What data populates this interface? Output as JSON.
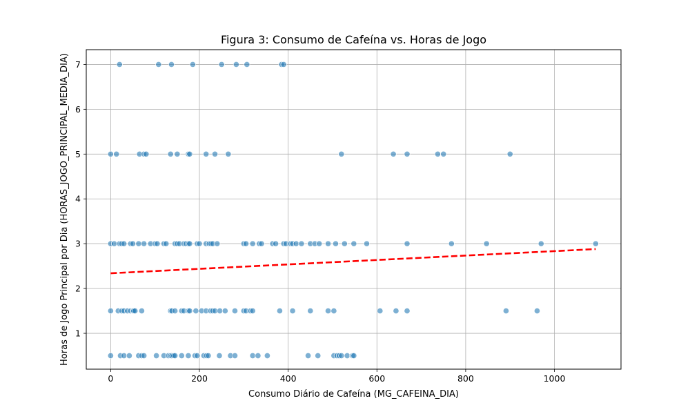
{
  "chart_data": {
    "type": "scatter",
    "title": "Figura 3: Consumo de Cafeína vs. Horas de Jogo",
    "xlabel": "Consumo Diário de Cafeína (MG_CAFEINA_DIA)",
    "ylabel": "Horas de Jogo Principal por Dia (HORAS_JOGO_PRINCIPAL_MEDIA_DIA)",
    "xlim": [
      -55,
      1150
    ],
    "ylim": [
      0.2,
      7.33
    ],
    "xticks": [
      0,
      200,
      400,
      600,
      800,
      1000
    ],
    "yticks": [
      1,
      2,
      3,
      4,
      5,
      6,
      7
    ],
    "grid": true,
    "colors": {
      "points": "#1f77b4",
      "trend": "#ff0000",
      "grid": "#b0b0b0"
    },
    "series": [
      {
        "points": [
          [
            20,
            7
          ],
          [
            108,
            7
          ],
          [
            137,
            7
          ],
          [
            185,
            7
          ],
          [
            250,
            7
          ],
          [
            283,
            7
          ],
          [
            307,
            7
          ],
          [
            385,
            7
          ],
          [
            390,
            7
          ],
          [
            0,
            5
          ],
          [
            13,
            5
          ],
          [
            65,
            5
          ],
          [
            75,
            5
          ],
          [
            80,
            5
          ],
          [
            135,
            5
          ],
          [
            150,
            5
          ],
          [
            175,
            5
          ],
          [
            178,
            5
          ],
          [
            215,
            5
          ],
          [
            235,
            5
          ],
          [
            265,
            5
          ],
          [
            520,
            5
          ],
          [
            637,
            5
          ],
          [
            668,
            5
          ],
          [
            737,
            5
          ],
          [
            750,
            5
          ],
          [
            900,
            5
          ],
          [
            0,
            3
          ],
          [
            8,
            3
          ],
          [
            20,
            3
          ],
          [
            25,
            3
          ],
          [
            30,
            3
          ],
          [
            45,
            3
          ],
          [
            50,
            3
          ],
          [
            63,
            3
          ],
          [
            75,
            3
          ],
          [
            90,
            3
          ],
          [
            100,
            3
          ],
          [
            105,
            3
          ],
          [
            120,
            3
          ],
          [
            125,
            3
          ],
          [
            145,
            3
          ],
          [
            150,
            3
          ],
          [
            155,
            3
          ],
          [
            165,
            3
          ],
          [
            170,
            3
          ],
          [
            175,
            3
          ],
          [
            178,
            3
          ],
          [
            195,
            3
          ],
          [
            200,
            3
          ],
          [
            215,
            3
          ],
          [
            222,
            3
          ],
          [
            226,
            3
          ],
          [
            230,
            3
          ],
          [
            240,
            3
          ],
          [
            300,
            3
          ],
          [
            305,
            3
          ],
          [
            320,
            3
          ],
          [
            335,
            3
          ],
          [
            340,
            3
          ],
          [
            365,
            3
          ],
          [
            372,
            3
          ],
          [
            390,
            3
          ],
          [
            395,
            3
          ],
          [
            405,
            3
          ],
          [
            410,
            3
          ],
          [
            418,
            3
          ],
          [
            430,
            3
          ],
          [
            450,
            3
          ],
          [
            460,
            3
          ],
          [
            470,
            3
          ],
          [
            490,
            3
          ],
          [
            507,
            3
          ],
          [
            527,
            3
          ],
          [
            548,
            3
          ],
          [
            577,
            3
          ],
          [
            668,
            3
          ],
          [
            768,
            3
          ],
          [
            847,
            3
          ],
          [
            970,
            3
          ],
          [
            1093,
            3
          ],
          [
            0,
            1.5
          ],
          [
            17,
            1.5
          ],
          [
            25,
            1.5
          ],
          [
            30,
            1.5
          ],
          [
            38,
            1.5
          ],
          [
            45,
            1.5
          ],
          [
            50,
            1.5
          ],
          [
            52,
            1.5
          ],
          [
            55,
            1.5
          ],
          [
            70,
            1.5
          ],
          [
            135,
            1.5
          ],
          [
            138,
            1.5
          ],
          [
            145,
            1.5
          ],
          [
            160,
            1.5
          ],
          [
            165,
            1.5
          ],
          [
            175,
            1.5
          ],
          [
            178,
            1.5
          ],
          [
            192,
            1.5
          ],
          [
            205,
            1.5
          ],
          [
            215,
            1.5
          ],
          [
            225,
            1.5
          ],
          [
            230,
            1.5
          ],
          [
            235,
            1.5
          ],
          [
            246,
            1.5
          ],
          [
            258,
            1.5
          ],
          [
            280,
            1.5
          ],
          [
            300,
            1.5
          ],
          [
            305,
            1.5
          ],
          [
            315,
            1.5
          ],
          [
            320,
            1.5
          ],
          [
            381,
            1.5
          ],
          [
            410,
            1.5
          ],
          [
            450,
            1.5
          ],
          [
            490,
            1.5
          ],
          [
            503,
            1.5
          ],
          [
            607,
            1.5
          ],
          [
            643,
            1.5
          ],
          [
            668,
            1.5
          ],
          [
            891,
            1.5
          ],
          [
            961,
            1.5
          ],
          [
            0,
            0.5
          ],
          [
            22,
            0.5
          ],
          [
            30,
            0.5
          ],
          [
            42,
            0.5
          ],
          [
            63,
            0.5
          ],
          [
            70,
            0.5
          ],
          [
            75,
            0.5
          ],
          [
            103,
            0.5
          ],
          [
            120,
            0.5
          ],
          [
            130,
            0.5
          ],
          [
            135,
            0.5
          ],
          [
            138,
            0.5
          ],
          [
            142,
            0.5
          ],
          [
            145,
            0.5
          ],
          [
            160,
            0.5
          ],
          [
            175,
            0.5
          ],
          [
            190,
            0.5
          ],
          [
            195,
            0.5
          ],
          [
            210,
            0.5
          ],
          [
            216,
            0.5
          ],
          [
            220,
            0.5
          ],
          [
            245,
            0.5
          ],
          [
            270,
            0.5
          ],
          [
            280,
            0.5
          ],
          [
            320,
            0.5
          ],
          [
            332,
            0.5
          ],
          [
            353,
            0.5
          ],
          [
            445,
            0.5
          ],
          [
            467,
            0.5
          ],
          [
            503,
            0.5
          ],
          [
            510,
            0.5
          ],
          [
            515,
            0.5
          ],
          [
            520,
            0.5
          ],
          [
            533,
            0.5
          ],
          [
            545,
            0.5
          ],
          [
            548,
            0.5
          ]
        ]
      }
    ],
    "trendline": {
      "style": "dashed",
      "x": [
        0,
        1093
      ],
      "y": [
        2.34,
        2.88
      ]
    }
  }
}
